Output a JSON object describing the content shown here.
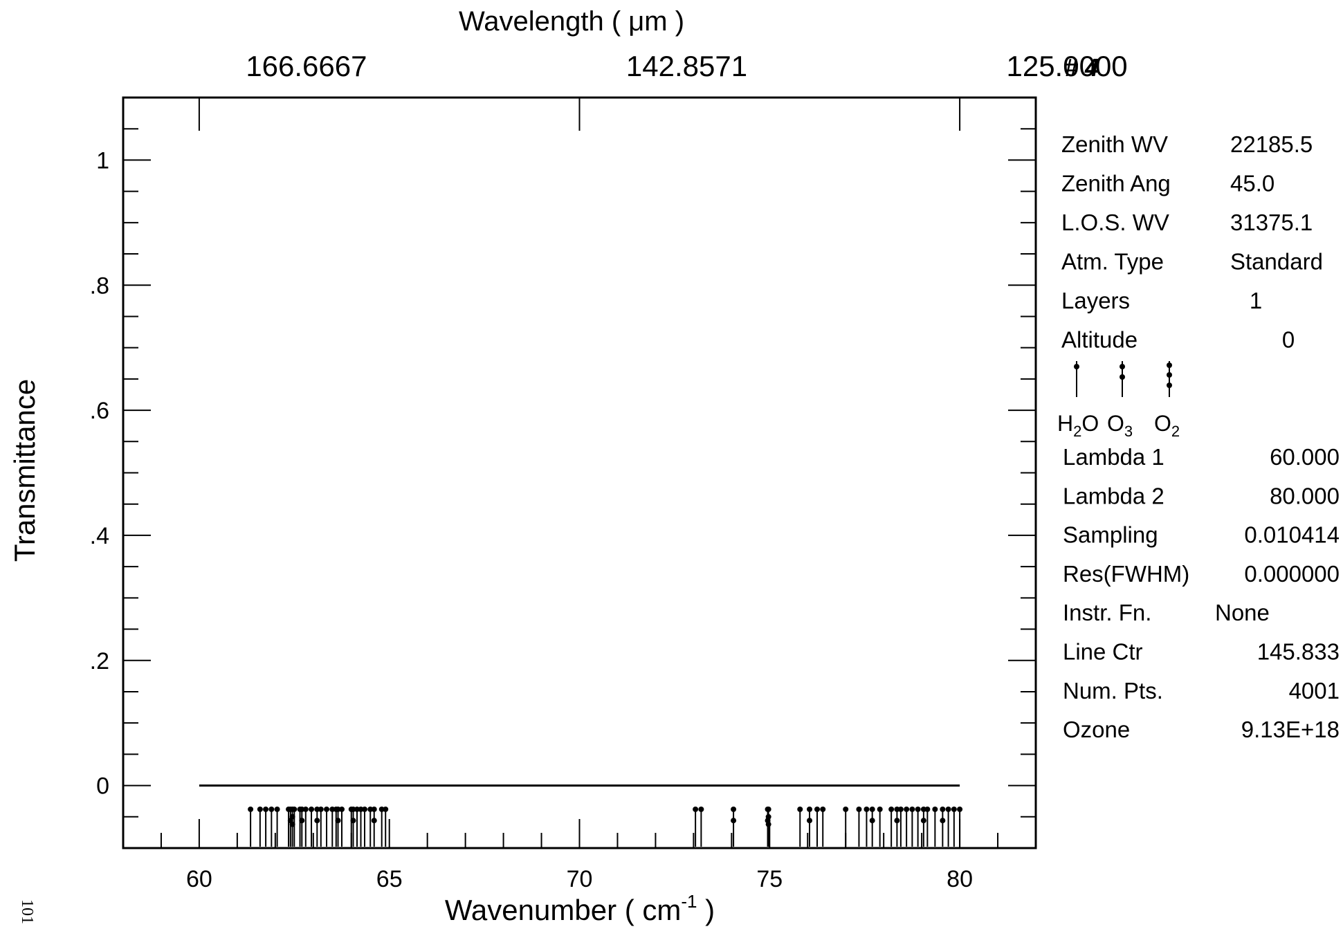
{
  "chart_data": {
    "type": "line",
    "xlabel": "Wavenumber ( cm",
    "xlabel_sup": "-1",
    "xlabel_close": " )",
    "ylabel": "Transmittance",
    "top_axis_label": "Wavelength ( μm )",
    "top_axis_ticks": [
      {
        "wavenumber": 60,
        "label": "166.6667"
      },
      {
        "wavenumber": 70,
        "label": "142.8571"
      },
      {
        "wavenumber": 80,
        "label": "125.0000"
      }
    ],
    "xlim": [
      58,
      82
    ],
    "ylim": [
      -0.1,
      1.1
    ],
    "x_ticks": [
      60,
      65,
      70,
      75,
      80
    ],
    "y_ticks": [
      {
        "value": 0,
        "label": "0"
      },
      {
        "value": 0.2,
        "label": ".2"
      },
      {
        "value": 0.4,
        "label": ".4"
      },
      {
        "value": 0.6,
        "label": ".6"
      },
      {
        "value": 0.8,
        "label": ".8"
      },
      {
        "value": 1,
        "label": "1"
      }
    ],
    "series": [
      {
        "x": [
          60,
          80
        ],
        "y": [
          0,
          0
        ]
      }
    ],
    "line_markers": {
      "H2O": [
        61.35,
        61.6,
        61.75,
        61.9,
        62.05,
        62.35,
        62.5,
        62.65,
        62.8,
        62.95,
        63.2,
        63.35,
        63.5,
        63.6,
        63.75,
        64.0,
        64.15,
        64.25,
        64.35,
        64.5,
        64.8,
        64.9,
        73.05,
        73.2,
        75.8,
        76.25,
        76.4,
        77.0,
        77.35,
        77.55,
        77.9,
        78.2,
        78.45,
        78.6,
        78.75,
        78.9,
        79.15,
        79.35,
        79.7,
        79.85,
        80.0
      ],
      "O3": [
        62.4,
        62.7,
        63.1,
        63.65,
        64.05,
        64.6,
        74.05,
        74.95,
        76.05,
        77.7,
        78.35,
        79.05,
        79.55
      ],
      "O2": [
        62.45,
        74.97
      ]
    }
  },
  "plot_number": "# 4",
  "info": [
    {
      "label": "Zenith  WV",
      "value": "22185.5"
    },
    {
      "label": "Zenith  Ang",
      "value": "45.0"
    },
    {
      "label": "L.O.S.  WV",
      "value": "31375.1"
    },
    {
      "label": "Atm.  Type",
      "value": "Standard"
    },
    {
      "label": "Layers",
      "value": "1"
    },
    {
      "label": "Altitude",
      "value": "0"
    }
  ],
  "legend": [
    {
      "species": "H2O",
      "text_main": "H",
      "text_sub": "2",
      "text_tail": "O"
    },
    {
      "species": "O3",
      "text_main": "O",
      "text_sub": "3",
      "text_tail": ""
    },
    {
      "species": "O2",
      "text_main": "O",
      "text_sub": "2",
      "text_tail": ""
    }
  ],
  "params": [
    {
      "label": "Lambda  1",
      "value": "60.000"
    },
    {
      "label": "Lambda  2",
      "value": "80.000"
    },
    {
      "label": "Sampling",
      "value": "0.010414"
    },
    {
      "label": "Res(FWHM)",
      "value": "0.000000"
    },
    {
      "label": "Instr.  Fn.",
      "value": "None"
    },
    {
      "label": "Line  Ctr",
      "value": "145.833"
    },
    {
      "label": "Num.  Pts.",
      "value": "4001"
    },
    {
      "label": "Ozone",
      "value": "9.13E+18"
    }
  ],
  "page_number": "101"
}
